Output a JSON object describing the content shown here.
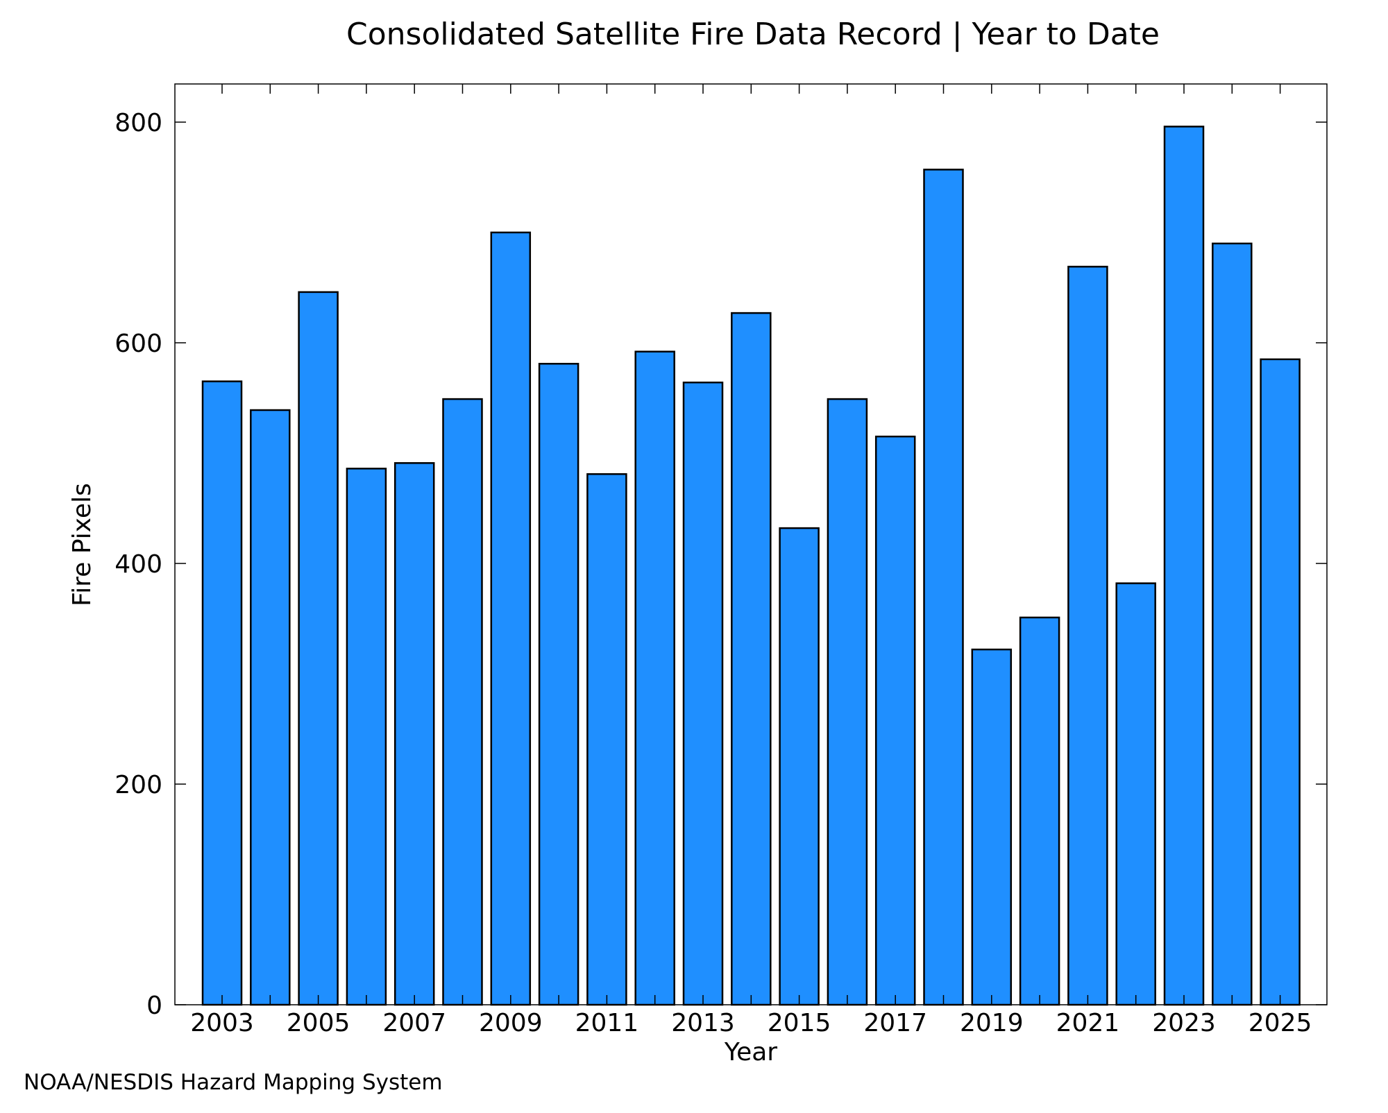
{
  "chart_data": {
    "type": "bar",
    "title": "Consolidated Satellite Fire Data Record | Year to Date",
    "xlabel": "Year",
    "ylabel": "Fire Pixels",
    "categories": [
      "2003",
      "2004",
      "2005",
      "2006",
      "2007",
      "2008",
      "2009",
      "2010",
      "2011",
      "2012",
      "2013",
      "2014",
      "2015",
      "2016",
      "2017",
      "2018",
      "2019",
      "2020",
      "2021",
      "2022",
      "2023",
      "2024",
      "2025"
    ],
    "values": [
      565,
      539,
      646,
      486,
      491,
      549,
      700,
      581,
      481,
      592,
      564,
      627,
      432,
      549,
      515,
      757,
      322,
      351,
      669,
      382,
      796,
      690,
      585
    ],
    "ylim": [
      0,
      835
    ],
    "yticks": [
      0,
      200,
      400,
      600,
      800
    ],
    "xticks": [
      "2003",
      "2005",
      "2007",
      "2009",
      "2011",
      "2013",
      "2015",
      "2017",
      "2019",
      "2021",
      "2023",
      "2025"
    ],
    "grid": false,
    "bar_color": "#1f8fff",
    "bar_edge_color": "#000000"
  },
  "credit": "NOAA/NESDIS Hazard Mapping System",
  "colors": {
    "credit_text": "#808080"
  }
}
